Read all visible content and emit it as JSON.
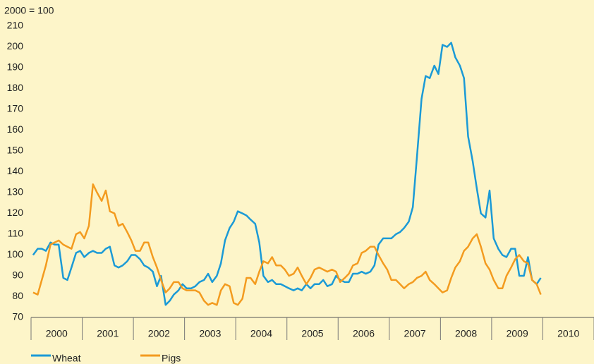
{
  "chart_data": {
    "type": "line",
    "unit_label": "2000 = 100",
    "x": [
      2000.04,
      2000.13,
      2000.21,
      2000.29,
      2000.38,
      2000.46,
      2000.54,
      2000.63,
      2000.71,
      2000.79,
      2000.88,
      2000.96,
      2001.04,
      2001.13,
      2001.21,
      2001.29,
      2001.38,
      2001.46,
      2001.54,
      2001.63,
      2001.71,
      2001.79,
      2001.88,
      2001.96,
      2002.04,
      2002.13,
      2002.21,
      2002.29,
      2002.38,
      2002.46,
      2002.54,
      2002.63,
      2002.71,
      2002.79,
      2002.88,
      2002.96,
      2003.04,
      2003.13,
      2003.21,
      2003.29,
      2003.38,
      2003.46,
      2003.54,
      2003.63,
      2003.71,
      2003.79,
      2003.88,
      2003.96,
      2004.04,
      2004.13,
      2004.21,
      2004.29,
      2004.38,
      2004.46,
      2004.54,
      2004.63,
      2004.71,
      2004.79,
      2004.88,
      2004.96,
      2005.04,
      2005.13,
      2005.21,
      2005.29,
      2005.38,
      2005.46,
      2005.54,
      2005.63,
      2005.71,
      2005.79,
      2005.88,
      2005.96,
      2006.04,
      2006.13,
      2006.21,
      2006.29,
      2006.38,
      2006.46,
      2006.54,
      2006.63,
      2006.71,
      2006.79,
      2006.88,
      2006.96,
      2007.04,
      2007.13,
      2007.21,
      2007.29,
      2007.38,
      2007.46,
      2007.54,
      2007.63,
      2007.71,
      2007.79,
      2007.88,
      2007.96,
      2008.04,
      2008.13,
      2008.21,
      2008.29,
      2008.38,
      2008.46,
      2008.54,
      2008.63,
      2008.71,
      2008.79,
      2008.88,
      2008.96,
      2009.04,
      2009.13,
      2009.21,
      2009.29,
      2009.38,
      2009.46,
      2009.54,
      2009.63,
      2009.71,
      2009.79,
      2009.88,
      2009.96
    ],
    "series": [
      {
        "name": "Wheat",
        "color": "#1b9ad6",
        "values": [
          100,
          103,
          103,
          102,
          106,
          105,
          105,
          89,
          88,
          94,
          101,
          102,
          99,
          101,
          102,
          101,
          101,
          103,
          104,
          95,
          94,
          95,
          97,
          100,
          100,
          98,
          95,
          94,
          92,
          85,
          90,
          76,
          78,
          81,
          83,
          86,
          84,
          84,
          85,
          87,
          88,
          91,
          87,
          90,
          96,
          107,
          113,
          116,
          121,
          120,
          119,
          117,
          115,
          106,
          90,
          87,
          88,
          86,
          86,
          85,
          84,
          83,
          84,
          83,
          86,
          84,
          86,
          86,
          88,
          85,
          86,
          90,
          88,
          87,
          87,
          91,
          91,
          92,
          91,
          92,
          95,
          105,
          108,
          108,
          108,
          110,
          111,
          113,
          116,
          123,
          147,
          175,
          186,
          185,
          191,
          187,
          201,
          200,
          202,
          195,
          191,
          185,
          157,
          145,
          132,
          120,
          118,
          131,
          108,
          103,
          100,
          99,
          103,
          103,
          90,
          90,
          99,
          88,
          86,
          89
        ]
      },
      {
        "name": "Pigs",
        "color": "#f39b1f",
        "values": [
          82,
          81,
          88,
          95,
          105,
          106,
          107,
          105,
          104,
          103,
          110,
          111,
          108,
          114,
          134,
          130,
          126,
          131,
          121,
          120,
          114,
          115,
          111,
          107,
          102,
          102,
          106,
          106,
          99,
          94,
          88,
          82,
          84,
          87,
          87,
          84,
          83,
          83,
          83,
          82,
          78,
          76,
          77,
          76,
          83,
          86,
          85,
          77,
          76,
          79,
          89,
          89,
          86,
          92,
          97,
          96,
          99,
          95,
          95,
          93,
          90,
          91,
          94,
          90,
          86,
          89,
          93,
          94,
          93,
          92,
          93,
          92,
          87,
          89,
          91,
          95,
          96,
          101,
          102,
          104,
          104,
          100,
          96,
          93,
          88,
          88,
          86,
          84,
          86,
          87,
          89,
          90,
          92,
          88,
          86,
          84,
          82,
          83,
          89,
          94,
          97,
          102,
          104,
          108,
          110,
          104,
          96,
          93,
          88,
          84,
          84,
          90,
          94,
          98,
          100,
          97,
          96,
          88,
          86,
          81
        ]
      }
    ],
    "xlim": [
      2000,
      2011
    ],
    "xticks": [
      {
        "value": 2000.5,
        "label": "2000"
      },
      {
        "value": 2001.5,
        "label": "2001"
      },
      {
        "value": 2002.5,
        "label": "2002"
      },
      {
        "value": 2003.5,
        "label": "2003"
      },
      {
        "value": 2004.5,
        "label": "2004"
      },
      {
        "value": 2005.5,
        "label": "2005"
      },
      {
        "value": 2006.5,
        "label": "2006"
      },
      {
        "value": 2007.5,
        "label": "2007"
      },
      {
        "value": 2008.5,
        "label": "2008"
      },
      {
        "value": 2009.5,
        "label": "2009"
      },
      {
        "value": 2010.5,
        "label": "2010"
      }
    ],
    "ylim": [
      70,
      210
    ],
    "yticks": [
      70,
      80,
      90,
      100,
      110,
      120,
      130,
      140,
      150,
      160,
      170,
      180,
      190,
      200,
      210
    ]
  }
}
